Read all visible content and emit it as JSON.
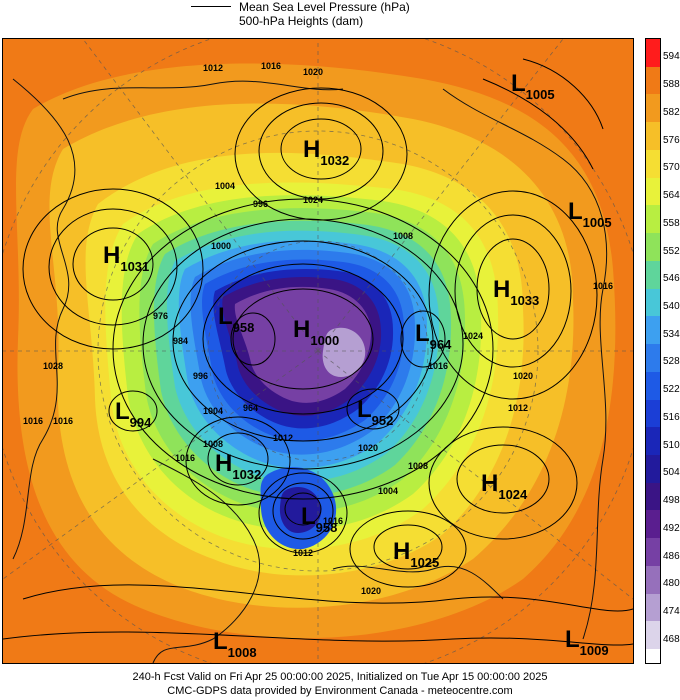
{
  "legend": {
    "line_label": "Mean Sea Level Pressure (hPa)",
    "fill_label": "500-hPa Heights (dam)"
  },
  "colorbar": {
    "levels": [
      "594",
      "588",
      "582",
      "576",
      "570",
      "564",
      "558",
      "552",
      "546",
      "540",
      "534",
      "528",
      "522",
      "516",
      "510",
      "504",
      "498",
      "492",
      "486",
      "480",
      "474",
      "468"
    ],
    "colors": [
      "#ff1c1c",
      "#f07a16",
      "#f29a1e",
      "#f6bf28",
      "#f5de33",
      "#e8f23a",
      "#b8ee41",
      "#8fe35a",
      "#5fd59b",
      "#48c7d8",
      "#3da0f0",
      "#2d7bec",
      "#1e5ae6",
      "#1b3ed6",
      "#1a26b8",
      "#221a9c",
      "#3a1485",
      "#5a1e8f",
      "#7640a4",
      "#9670bb",
      "#b59fd2",
      "#dcd4ea"
    ]
  },
  "map": {
    "pressure_centers": [
      {
        "type": "L",
        "value": "1005"
      },
      {
        "type": "H",
        "value": "1032"
      },
      {
        "type": "L",
        "value": "1005"
      },
      {
        "type": "H",
        "value": "1031"
      },
      {
        "type": "H",
        "value": "1033"
      },
      {
        "type": "L",
        "value": "958"
      },
      {
        "type": "H",
        "value": "1000"
      },
      {
        "type": "L",
        "value": "964"
      },
      {
        "type": "L",
        "value": "994"
      },
      {
        "type": "L",
        "value": "952"
      },
      {
        "type": "H",
        "value": "1032"
      },
      {
        "type": "H",
        "value": "1024"
      },
      {
        "type": "L",
        "value": "958"
      },
      {
        "type": "H",
        "value": "1025"
      },
      {
        "type": "L",
        "value": "1008"
      },
      {
        "type": "L",
        "value": "1009"
      }
    ],
    "isobar_labels": [
      "1012",
      "1016",
      "1020",
      "1004",
      "996",
      "1024",
      "1008",
      "1000",
      "1028",
      "1016",
      "1024",
      "1020",
      "1016",
      "1012",
      "1016",
      "1004",
      "1008",
      "1016",
      "1020",
      "1016",
      "1008",
      "1012",
      "1020",
      "1016",
      "1012",
      "1004",
      "964",
      "976",
      "996",
      "984"
    ]
  },
  "footer": {
    "line1": "240-h Fcst Valid on Fri Apr 25 00:00:00 2025, Initialized on Tue Apr 15 00:00:00 2025",
    "line2": "CMC-GDPS data provided by Environment Canada - meteocentre.com"
  }
}
